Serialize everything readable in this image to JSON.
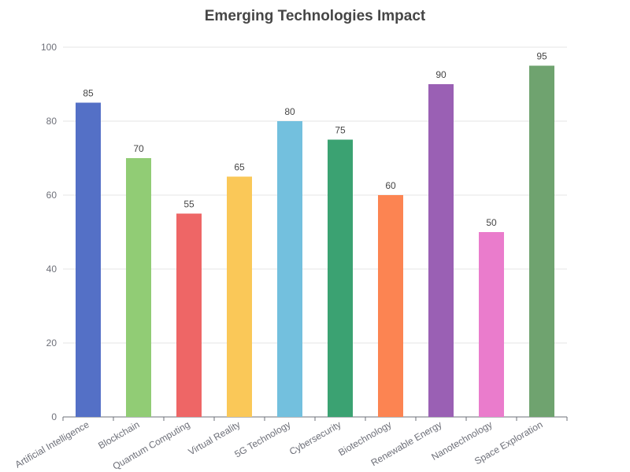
{
  "chart_data": {
    "type": "bar",
    "title": "Emerging Technologies Impact",
    "xlabel": "",
    "ylabel": "",
    "categories": [
      "Artificial Intelligence",
      "Blockchain",
      "Quantum Computing",
      "Virtual Reality",
      "5G Technology",
      "Cybersecurity",
      "Biotechnology",
      "Renewable Energy",
      "Nanotechnology",
      "Space Exploration"
    ],
    "values": [
      85,
      70,
      55,
      65,
      80,
      75,
      60,
      90,
      50,
      95
    ],
    "colors": [
      "#5470c6",
      "#91cc75",
      "#ee6666",
      "#fac858",
      "#73c0de",
      "#3ba272",
      "#fc8452",
      "#9a60b4",
      "#ea7ccc",
      "#6fa36f"
    ],
    "ylim": [
      0,
      100
    ],
    "yticks": [
      0,
      20,
      40,
      60,
      80,
      100
    ],
    "grid": true,
    "legend": "none",
    "data_labels": true
  }
}
